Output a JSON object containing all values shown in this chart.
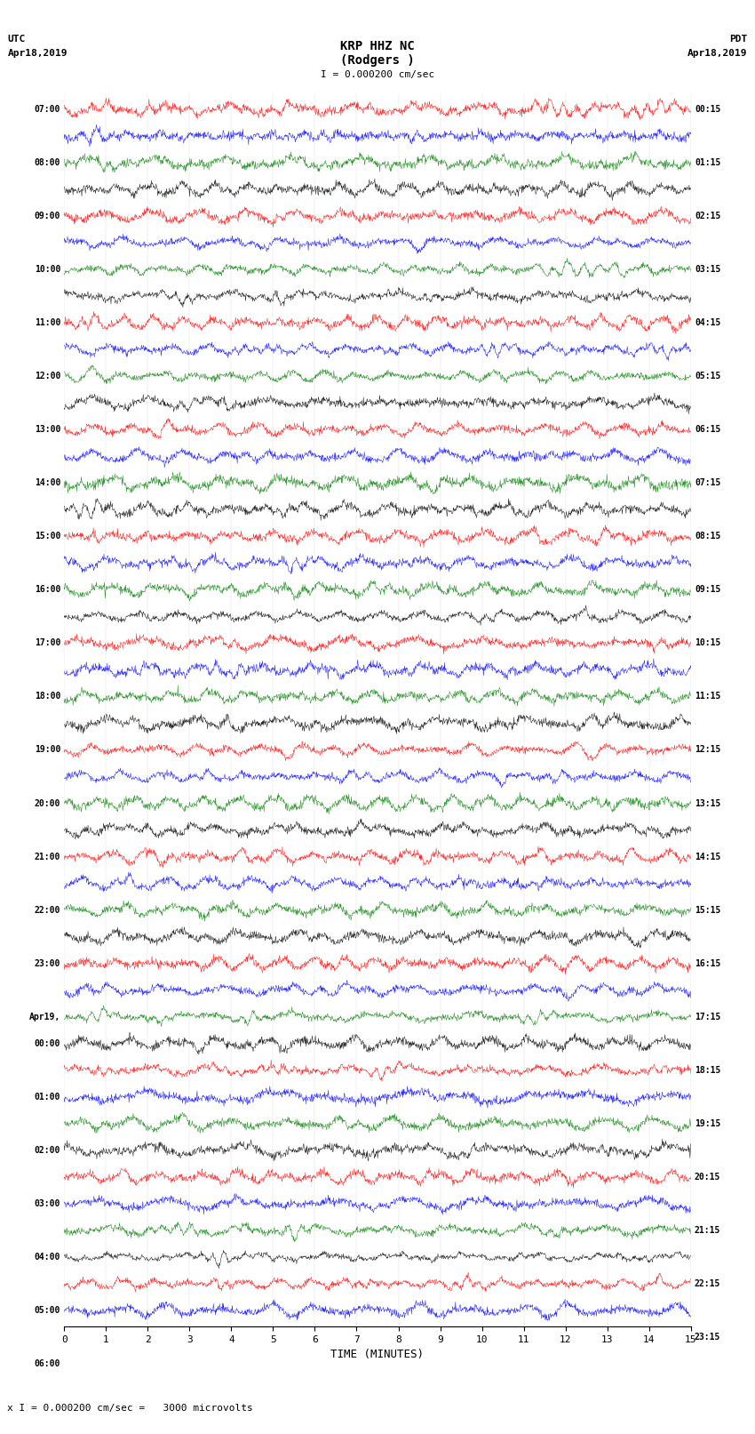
{
  "title_line1": "KRP HHZ NC",
  "title_line2": "(Rodgers )",
  "scale_label": "I = 0.000200 cm/sec",
  "bottom_scale": "x I = 0.000200 cm/sec =   3000 microvolts",
  "left_header": "UTC",
  "left_date": "Apr18,2019",
  "right_header": "PDT",
  "right_date": "Apr18,2019",
  "xlabel": "TIME (MINUTES)",
  "left_times": [
    "07:00",
    "",
    "08:00",
    "",
    "09:00",
    "",
    "10:00",
    "",
    "11:00",
    "",
    "12:00",
    "",
    "13:00",
    "",
    "14:00",
    "",
    "15:00",
    "",
    "16:00",
    "",
    "17:00",
    "",
    "18:00",
    "",
    "19:00",
    "",
    "20:00",
    "",
    "21:00",
    "",
    "22:00",
    "",
    "23:00",
    "",
    "Apr19,",
    "00:00",
    "",
    "01:00",
    "",
    "02:00",
    "",
    "03:00",
    "",
    "04:00",
    "",
    "05:00",
    "",
    "06:00"
  ],
  "right_times": [
    "00:15",
    "",
    "01:15",
    "",
    "02:15",
    "",
    "03:15",
    "",
    "04:15",
    "",
    "05:15",
    "",
    "06:15",
    "",
    "07:15",
    "",
    "08:15",
    "",
    "09:15",
    "",
    "10:15",
    "",
    "11:15",
    "",
    "12:15",
    "",
    "13:15",
    "",
    "14:15",
    "",
    "15:15",
    "",
    "16:15",
    "",
    "17:15",
    "",
    "18:15",
    "",
    "19:15",
    "",
    "20:15",
    "",
    "21:15",
    "",
    "22:15",
    "",
    "23:15"
  ],
  "n_traces": 46,
  "minutes_per_trace": 15,
  "colors": [
    "red",
    "blue",
    "green",
    "black"
  ],
  "bg_color": "white",
  "trace_amplitude": 0.42,
  "freq_base": 8.0,
  "noise_scale": 0.3,
  "xticks": [
    0,
    1,
    2,
    3,
    4,
    5,
    6,
    7,
    8,
    9,
    10,
    11,
    12,
    13,
    14,
    15
  ],
  "fig_width": 8.5,
  "fig_height": 16.13
}
